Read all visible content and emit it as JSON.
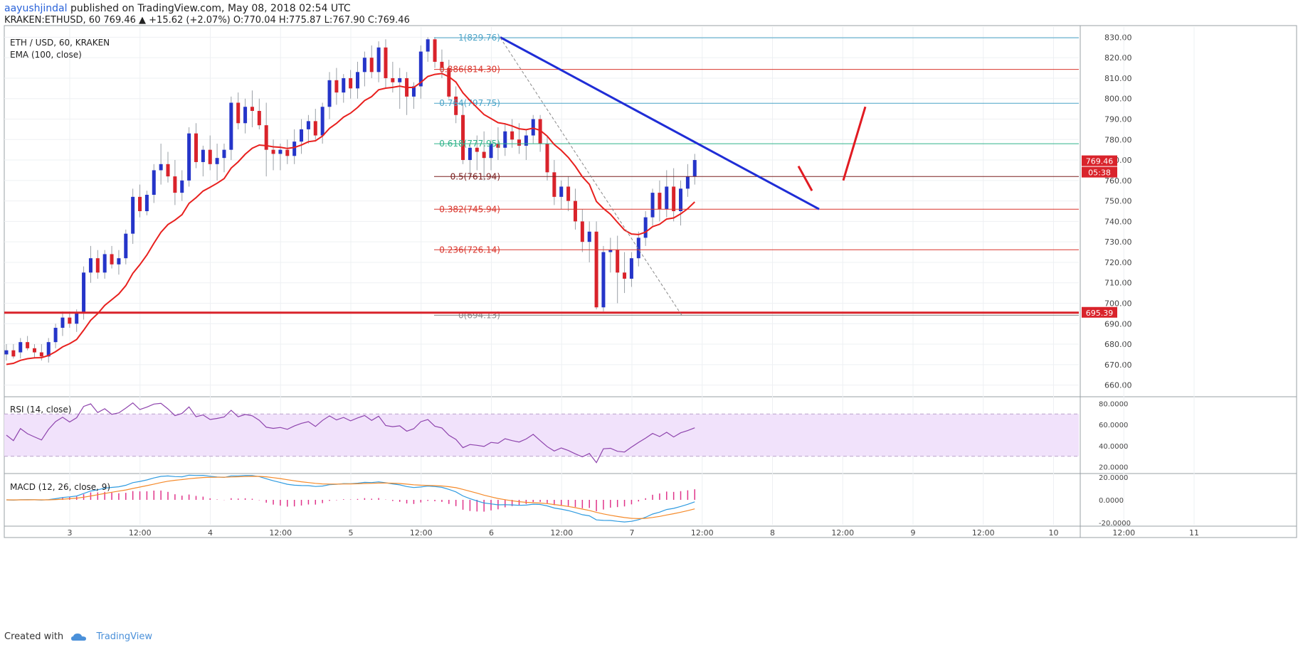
{
  "header": {
    "user": "aayushjindal",
    "published_text": "published on TradingView.com, May 08, 2018 02:54 UTC",
    "quote": "KRAKEN:ETHUSD, 60  769.46  ▲ +15.62 (+2.07%) O:770.04 H:775.87 L:767.90 C:769.46"
  },
  "chart_data": [
    {
      "type": "candlestick",
      "title": "ETH / USD, 60, KRAKEN",
      "indicator_label": "EMA (100, close)",
      "y_ticks": [
        660,
        670,
        680,
        690,
        700,
        710,
        720,
        730,
        740,
        750,
        760,
        770,
        780,
        790,
        800,
        810,
        820,
        830
      ],
      "ylim": [
        655,
        835
      ],
      "x_tick_labels": [
        "3",
        "12:00",
        "4",
        "12:00",
        "5",
        "12:00",
        "6",
        "12:00",
        "7",
        "12:00",
        "8",
        "12:00",
        "9",
        "12:00",
        "10",
        "12:00",
        "11"
      ],
      "last_price_label": "769.46",
      "countdown_label": "05:38",
      "support_label": "695.39",
      "support_level": 695.39,
      "fibonacci": [
        {
          "label": "1(829.76)",
          "value": 829.76,
          "color": "#4aa3c7"
        },
        {
          "label": "0.886(814.30)",
          "value": 814.3,
          "color": "#d9342b"
        },
        {
          "label": "0.764(797.75)",
          "value": 797.75,
          "color": "#4aa3c7"
        },
        {
          "label": "0.618(777.95)",
          "value": 777.95,
          "color": "#2fb38a"
        },
        {
          "label": "0.5(761.94)",
          "value": 761.94,
          "color": "#7a1f1f"
        },
        {
          "label": "0.382(745.94)",
          "value": 745.94,
          "color": "#d9342b"
        },
        {
          "label": "0.236(726.14)",
          "value": 726.14,
          "color": "#d9342b"
        },
        {
          "label": "0(694.13)",
          "value": 694.13,
          "color": "#888888"
        }
      ],
      "candles": [
        [
          675,
          680,
          672,
          677
        ],
        [
          677,
          680,
          673,
          674
        ],
        [
          676,
          683,
          673,
          681
        ],
        [
          681,
          684,
          677,
          678
        ],
        [
          678,
          680,
          673,
          676
        ],
        [
          676,
          680,
          672,
          674
        ],
        [
          674,
          683,
          671,
          681
        ],
        [
          681,
          690,
          678,
          688
        ],
        [
          688,
          696,
          684,
          693
        ],
        [
          693,
          696,
          688,
          690
        ],
        [
          690,
          697,
          686,
          695
        ],
        [
          695,
          718,
          692,
          715
        ],
        [
          715,
          728,
          710,
          722
        ],
        [
          722,
          726,
          712,
          715
        ],
        [
          715,
          726,
          712,
          724
        ],
        [
          724,
          728,
          717,
          719
        ],
        [
          719,
          726,
          714,
          722
        ],
        [
          722,
          736,
          719,
          734
        ],
        [
          734,
          756,
          729,
          752
        ],
        [
          752,
          758,
          742,
          745
        ],
        [
          745,
          755,
          743,
          753
        ],
        [
          753,
          768,
          749,
          765
        ],
        [
          765,
          778,
          758,
          768
        ],
        [
          768,
          774,
          759,
          762
        ],
        [
          762,
          770,
          748,
          754
        ],
        [
          754,
          765,
          750,
          760
        ],
        [
          760,
          786,
          757,
          783
        ],
        [
          783,
          788,
          766,
          769
        ],
        [
          769,
          777,
          762,
          775
        ],
        [
          775,
          782,
          765,
          768
        ],
        [
          768,
          778,
          760,
          771
        ],
        [
          771,
          778,
          764,
          775
        ],
        [
          775,
          801,
          770,
          798
        ],
        [
          798,
          803,
          785,
          788
        ],
        [
          788,
          800,
          783,
          796
        ],
        [
          796,
          804,
          786,
          794
        ],
        [
          794,
          800,
          785,
          787
        ],
        [
          787,
          798,
          762,
          775
        ],
        [
          775,
          780,
          765,
          773
        ],
        [
          773,
          778,
          765,
          775
        ],
        [
          775,
          780,
          768,
          772
        ],
        [
          772,
          785,
          768,
          779
        ],
        [
          779,
          790,
          773,
          785
        ],
        [
          785,
          792,
          778,
          789
        ],
        [
          789,
          795,
          780,
          782
        ],
        [
          782,
          798,
          778,
          796
        ],
        [
          796,
          813,
          790,
          809
        ],
        [
          809,
          815,
          797,
          803
        ],
        [
          803,
          812,
          798,
          810
        ],
        [
          810,
          814,
          800,
          805
        ],
        [
          805,
          818,
          800,
          813
        ],
        [
          813,
          823,
          806,
          820
        ],
        [
          820,
          826,
          810,
          813
        ],
        [
          813,
          828,
          808,
          825
        ],
        [
          825,
          829,
          805,
          810
        ],
        [
          810,
          818,
          803,
          808
        ],
        [
          808,
          815,
          795,
          810
        ],
        [
          810,
          813,
          792,
          801
        ],
        [
          801,
          808,
          795,
          806
        ],
        [
          806,
          826,
          800,
          823
        ],
        [
          823,
          830,
          818,
          829
        ],
        [
          829,
          830,
          815,
          818
        ],
        [
          818,
          824,
          810,
          815
        ],
        [
          815,
          819,
          800,
          801
        ],
        [
          801,
          806,
          788,
          792
        ],
        [
          792,
          798,
          768,
          770
        ],
        [
          770,
          778,
          762,
          776
        ],
        [
          776,
          782,
          765,
          774
        ],
        [
          774,
          784,
          760,
          771
        ],
        [
          771,
          780,
          765,
          778
        ],
        [
          778,
          786,
          770,
          776
        ],
        [
          776,
          788,
          772,
          784
        ],
        [
          784,
          790,
          776,
          780
        ],
        [
          780,
          788,
          773,
          777
        ],
        [
          777,
          785,
          770,
          782
        ],
        [
          782,
          792,
          778,
          790
        ],
        [
          790,
          792,
          774,
          778
        ],
        [
          778,
          782,
          760,
          764
        ],
        [
          764,
          770,
          748,
          752
        ],
        [
          752,
          760,
          746,
          757
        ],
        [
          757,
          762,
          745,
          750
        ],
        [
          750,
          756,
          736,
          740
        ],
        [
          740,
          746,
          725,
          730
        ],
        [
          730,
          740,
          720,
          735
        ],
        [
          735,
          740,
          697,
          698
        ],
        [
          698,
          728,
          696,
          725
        ],
        [
          725,
          732,
          715,
          726
        ],
        [
          726,
          733,
          700,
          715
        ],
        [
          715,
          725,
          705,
          712
        ],
        [
          712,
          725,
          708,
          722
        ],
        [
          722,
          735,
          718,
          732
        ],
        [
          732,
          745,
          728,
          742
        ],
        [
          742,
          756,
          738,
          754
        ],
        [
          754,
          760,
          740,
          746
        ],
        [
          746,
          765,
          742,
          757
        ],
        [
          757,
          766,
          740,
          745
        ],
        [
          745,
          760,
          738,
          756
        ],
        [
          756,
          768,
          752,
          762
        ],
        [
          762,
          773,
          758,
          770
        ]
      ],
      "rsi": {
        "label": "RSI (14, close)",
        "ticks": [
          "20.0000",
          "40.0000",
          "60.0000",
          "80.0000"
        ],
        "ylim": [
          15,
          85
        ],
        "band": [
          30,
          70
        ]
      },
      "macd": {
        "label": "MACD (12, 26, close, 9)",
        "ticks": [
          "-20.0000",
          "0.0000",
          "20.0000"
        ],
        "ylim": [
          -22,
          22
        ]
      }
    }
  ],
  "footer": {
    "created_with": "Created with",
    "brand": "TradingView"
  },
  "colors": {
    "up": "#2535c9",
    "down": "#d9232b",
    "ema": "#e8201e",
    "trendline": "#1f2dd6",
    "rsi_line": "#8e44ad",
    "rsi_band": "#f1e2fb",
    "macd_line": "#2f9be0",
    "signal_line": "#f58a2a",
    "histogram": "#e0348a"
  }
}
